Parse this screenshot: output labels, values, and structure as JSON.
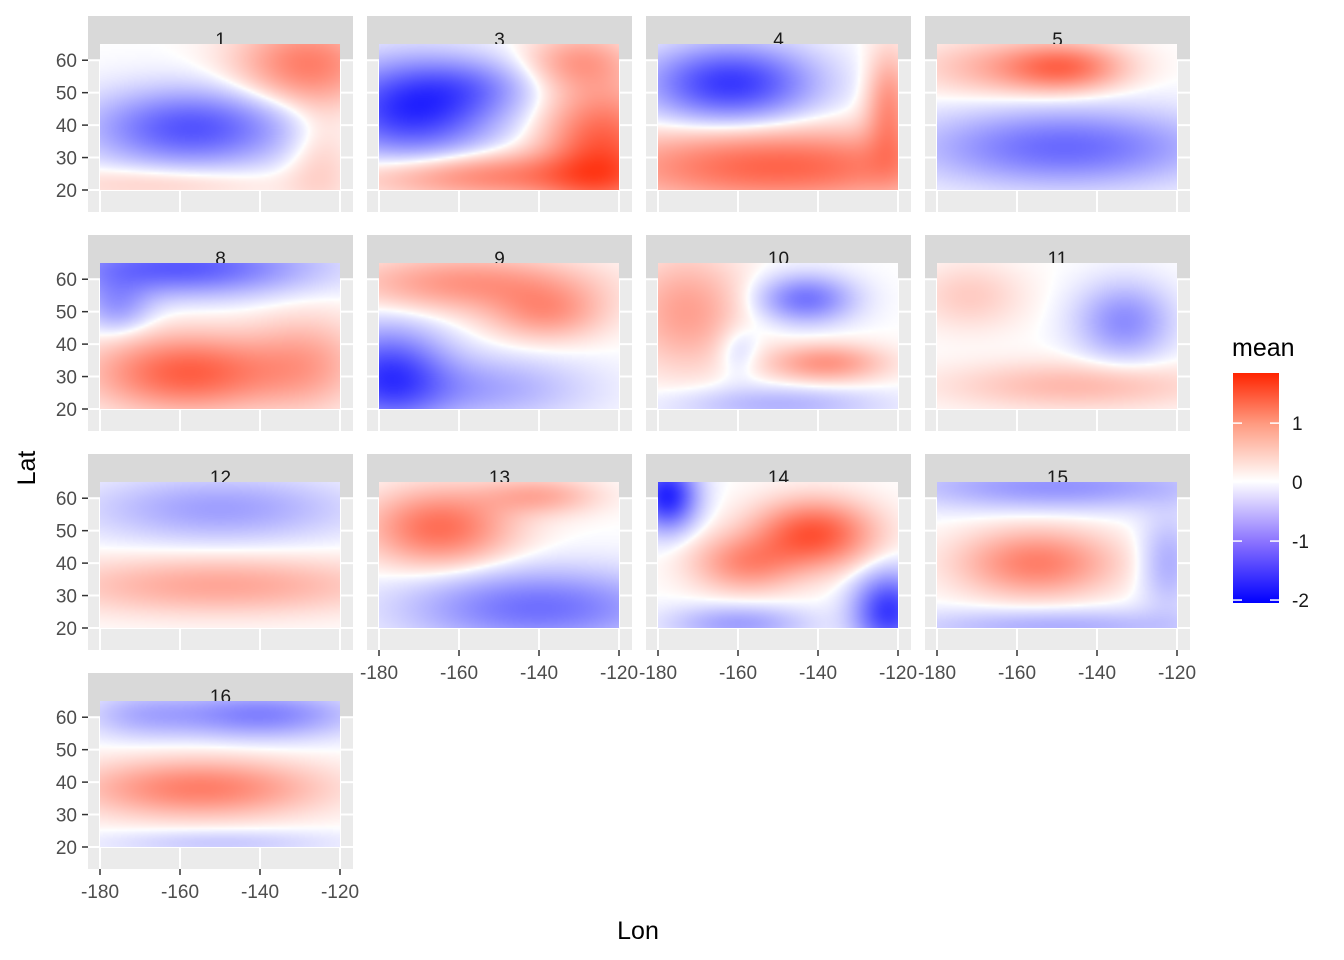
{
  "chart_data": {
    "type": "heatmap",
    "title": "",
    "xlabel": "Lon",
    "ylabel": "Lat",
    "xlim": [
      -180,
      -120
    ],
    "ylim": [
      20,
      65
    ],
    "x_ticks": [
      -180,
      -160,
      -140,
      -120
    ],
    "y_ticks": [
      20,
      30,
      40,
      50,
      60
    ],
    "grid": true,
    "legend": {
      "title": "mean",
      "position": "right",
      "ticks": [
        1,
        0,
        -1,
        -2
      ],
      "range": [
        -2.05,
        1.85
      ],
      "colors": {
        "low": "#0000ff",
        "mid": "#ffffff",
        "high": "#ff2400"
      }
    },
    "panels": [
      {
        "label": "1",
        "blobs": [
          {
            "x": -157,
            "y": 39,
            "sx": 17,
            "sy": 8,
            "v": -1.25
          },
          {
            "x": -128,
            "y": 59,
            "sx": 12,
            "sy": 9,
            "v": 0.95
          },
          {
            "x": -165,
            "y": 22,
            "sx": 20,
            "sy": 4,
            "v": 0.3
          },
          {
            "x": -125,
            "y": 30,
            "sx": 6,
            "sy": 12,
            "v": 0.3
          }
        ]
      },
      {
        "label": "3",
        "blobs": [
          {
            "x": -172,
            "y": 45,
            "sx": 14,
            "sy": 10,
            "v": -1.6
          },
          {
            "x": -157,
            "y": 52,
            "sx": 11,
            "sy": 6,
            "v": -0.5
          },
          {
            "x": -124,
            "y": 32,
            "sx": 10,
            "sy": 14,
            "v": 1.3
          },
          {
            "x": -150,
            "y": 24,
            "sx": 24,
            "sy": 5,
            "v": 0.9
          },
          {
            "x": -130,
            "y": 60,
            "sx": 9,
            "sy": 6,
            "v": 0.6
          }
        ]
      },
      {
        "label": "4",
        "blobs": [
          {
            "x": -162,
            "y": 53,
            "sx": 14,
            "sy": 8,
            "v": -1.5
          },
          {
            "x": -150,
            "y": 27,
            "sx": 30,
            "sy": 8,
            "v": 1.2
          },
          {
            "x": -122,
            "y": 45,
            "sx": 4,
            "sy": 12,
            "v": 0.8
          }
        ]
      },
      {
        "label": "5",
        "blobs": [
          {
            "x": -148,
            "y": 58,
            "sx": 10,
            "sy": 5,
            "v": 1.0
          },
          {
            "x": -165,
            "y": 58,
            "sx": 14,
            "sy": 6,
            "v": 0.45
          },
          {
            "x": -148,
            "y": 33,
            "sx": 24,
            "sy": 8,
            "v": -1.05
          }
        ]
      },
      {
        "label": "8",
        "blobs": [
          {
            "x": -158,
            "y": 31,
            "sx": 16,
            "sy": 8,
            "v": 1.25
          },
          {
            "x": -128,
            "y": 34,
            "sx": 10,
            "sy": 10,
            "v": 0.55
          },
          {
            "x": -160,
            "y": 64,
            "sx": 22,
            "sy": 6,
            "v": -1.2
          },
          {
            "x": -176,
            "y": 52,
            "sx": 6,
            "sy": 6,
            "v": -0.6
          }
        ]
      },
      {
        "label": "9",
        "blobs": [
          {
            "x": -158,
            "y": 59,
            "sx": 20,
            "sy": 6,
            "v": 0.75
          },
          {
            "x": -138,
            "y": 50,
            "sx": 10,
            "sy": 6,
            "v": 0.7
          },
          {
            "x": -178,
            "y": 30,
            "sx": 10,
            "sy": 10,
            "v": -1.4
          },
          {
            "x": -155,
            "y": 26,
            "sx": 18,
            "sy": 7,
            "v": -0.55
          }
        ]
      },
      {
        "label": "10",
        "blobs": [
          {
            "x": -173,
            "y": 50,
            "sx": 10,
            "sy": 12,
            "v": 0.65
          },
          {
            "x": -143,
            "y": 54,
            "sx": 8,
            "sy": 5,
            "v": -0.95
          },
          {
            "x": -138,
            "y": 34,
            "sx": 10,
            "sy": 4,
            "v": 0.75
          },
          {
            "x": -150,
            "y": 21,
            "sx": 18,
            "sy": 4,
            "v": -0.45
          },
          {
            "x": -160,
            "y": 38,
            "sx": 4,
            "sy": 6,
            "v": -0.3
          }
        ]
      },
      {
        "label": "11",
        "blobs": [
          {
            "x": -133,
            "y": 47,
            "sx": 8,
            "sy": 8,
            "v": -0.75
          },
          {
            "x": -145,
            "y": 27,
            "sx": 22,
            "sy": 5,
            "v": 0.45
          },
          {
            "x": -172,
            "y": 55,
            "sx": 9,
            "sy": 7,
            "v": 0.3
          }
        ]
      },
      {
        "label": "12",
        "blobs": [
          {
            "x": -150,
            "y": 33,
            "sx": 28,
            "sy": 6,
            "v": 0.6
          },
          {
            "x": -150,
            "y": 57,
            "sx": 22,
            "sy": 7,
            "v": -0.6
          }
        ]
      },
      {
        "label": "13",
        "blobs": [
          {
            "x": -165,
            "y": 51,
            "sx": 12,
            "sy": 8,
            "v": 1.1
          },
          {
            "x": -140,
            "y": 61,
            "sx": 10,
            "sy": 4,
            "v": 0.55
          },
          {
            "x": -140,
            "y": 26,
            "sx": 22,
            "sy": 8,
            "v": -1.0
          }
        ]
      },
      {
        "label": "14",
        "blobs": [
          {
            "x": -141,
            "y": 49,
            "sx": 10,
            "sy": 7,
            "v": 1.35
          },
          {
            "x": -158,
            "y": 40,
            "sx": 9,
            "sy": 6,
            "v": 0.8
          },
          {
            "x": -178,
            "y": 61,
            "sx": 5,
            "sy": 7,
            "v": -1.7
          },
          {
            "x": -122,
            "y": 25,
            "sx": 6,
            "sy": 8,
            "v": -1.5
          },
          {
            "x": -160,
            "y": 21,
            "sx": 12,
            "sy": 4,
            "v": -0.6
          }
        ]
      },
      {
        "label": "15",
        "blobs": [
          {
            "x": -155,
            "y": 40,
            "sx": 13,
            "sy": 7,
            "v": 0.95
          },
          {
            "x": -150,
            "y": 64,
            "sx": 26,
            "sy": 5,
            "v": -0.7
          },
          {
            "x": -150,
            "y": 20,
            "sx": 26,
            "sy": 4,
            "v": -0.5
          },
          {
            "x": -122,
            "y": 40,
            "sx": 5,
            "sy": 10,
            "v": -0.5
          }
        ]
      },
      {
        "label": "16",
        "blobs": [
          {
            "x": -155,
            "y": 38,
            "sx": 20,
            "sy": 6,
            "v": 0.95
          },
          {
            "x": -140,
            "y": 61,
            "sx": 16,
            "sy": 5,
            "v": -0.85
          },
          {
            "x": -170,
            "y": 61,
            "sx": 10,
            "sy": 5,
            "v": -0.4
          },
          {
            "x": -150,
            "y": 21,
            "sx": 20,
            "sy": 3,
            "v": -0.3
          }
        ]
      }
    ]
  }
}
